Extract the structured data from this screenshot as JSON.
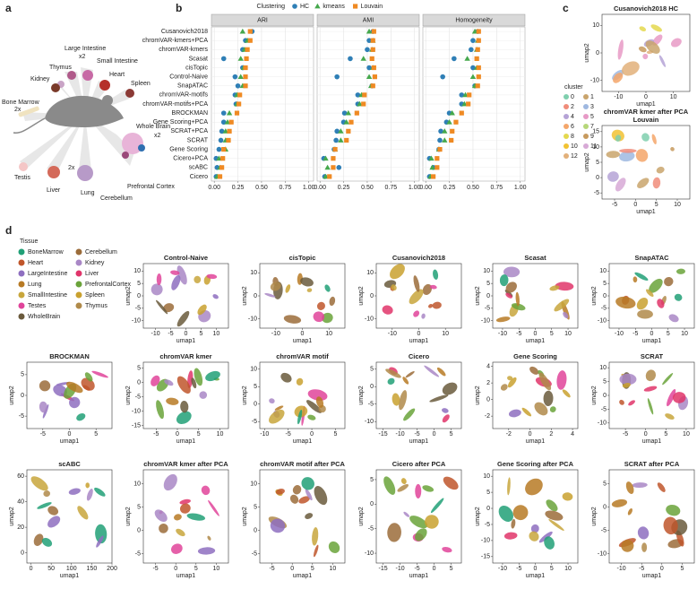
{
  "panel_labels": [
    "a",
    "b",
    "c",
    "d"
  ],
  "panel_a": {
    "labels": [
      "Large Intestine",
      "x2",
      "Small Intestine",
      "Thymus",
      "Kidney",
      "Heart",
      "Spleen",
      "Bone Marrow",
      "2x",
      "Whole Brain",
      "x2",
      "Prefrontal Cortex",
      "Cerebellum",
      "Lung",
      "2x",
      "Liver",
      "Testis"
    ]
  },
  "chart_data": {
    "type": "dot",
    "legend_title": "Clustering",
    "facets": [
      "ARI",
      "AMI",
      "Homogeneity"
    ],
    "categories": [
      "Cusanovich2018",
      "chromVAR-kmers+PCA",
      "chromVAR-kmers",
      "Scasat",
      "cisTopic",
      "Control-Naive",
      "SnapATAC",
      "chromVAR-motifs",
      "chromVAR-motifs+PCA",
      "BROCKMAN",
      "Gene Scoring+PCA",
      "SCRAT+PCA",
      "SCRAT",
      "Gene Scoring",
      "Cicero+PCA",
      "scABC",
      "Cicero"
    ],
    "xlim": [
      -0.03,
      1.05
    ],
    "xticks": [
      {
        "value": 0,
        "label": "0.00"
      },
      {
        "value": 0.25,
        "label": "0.25"
      },
      {
        "value": 0.5,
        "label": "0.50"
      },
      {
        "value": 0.75,
        "label": "0.75"
      },
      {
        "value": 1,
        "label": "1.00"
      }
    ],
    "series": [
      {
        "name": "HC",
        "color": "#2f7fb6",
        "marker": "circle",
        "values": [
          [
            0.4,
            0.33,
            0.3,
            0.1,
            0.3,
            0.22,
            0.25,
            0.22,
            0.23,
            0.1,
            0.1,
            0.08,
            0.07,
            0.05,
            0.02,
            0.03,
            0.02
          ],
          [
            0.56,
            0.52,
            0.5,
            0.32,
            0.52,
            0.18,
            0.55,
            0.4,
            0.4,
            0.26,
            0.25,
            0.18,
            0.17,
            0.15,
            0.04,
            0.2,
            0.05
          ],
          [
            0.55,
            0.5,
            0.48,
            0.3,
            0.5,
            0.18,
            0.52,
            0.38,
            0.38,
            0.25,
            0.22,
            0.16,
            0.15,
            0.14,
            0.04,
            0.08,
            0.04
          ]
        ]
      },
      {
        "name": "kmeans",
        "color": "#45a84c",
        "marker": "triangle",
        "values": [
          [
            0.3,
            0.35,
            0.32,
            0.28,
            0.31,
            0.28,
            0.3,
            0.24,
            0.24,
            0.16,
            0.14,
            0.12,
            0.12,
            0.12,
            0.05,
            0.06,
            0.03
          ],
          [
            0.52,
            0.56,
            0.55,
            0.46,
            0.56,
            0.52,
            0.54,
            0.44,
            0.42,
            0.3,
            0.28,
            0.22,
            0.22,
            0.16,
            0.06,
            0.08,
            0.06
          ],
          [
            0.52,
            0.55,
            0.54,
            0.44,
            0.54,
            0.5,
            0.52,
            0.42,
            0.41,
            0.28,
            0.25,
            0.2,
            0.2,
            0.14,
            0.06,
            0.07,
            0.05
          ]
        ]
      },
      {
        "name": "Louvain",
        "color": "#ef8a23",
        "marker": "square",
        "values": [
          [
            0.38,
            0.38,
            0.35,
            0.34,
            0.33,
            0.33,
            0.33,
            0.27,
            0.26,
            0.24,
            0.18,
            0.16,
            0.15,
            0.1,
            0.09,
            0.08,
            0.06
          ],
          [
            0.57,
            0.56,
            0.56,
            0.55,
            0.57,
            0.58,
            0.56,
            0.47,
            0.46,
            0.39,
            0.33,
            0.3,
            0.28,
            0.16,
            0.14,
            0.14,
            0.1
          ],
          [
            0.56,
            0.56,
            0.55,
            0.54,
            0.56,
            0.56,
            0.55,
            0.46,
            0.45,
            0.38,
            0.32,
            0.28,
            0.27,
            0.15,
            0.12,
            0.12,
            0.08
          ]
        ]
      }
    ]
  },
  "panel_c": {
    "legend_title": "cluster",
    "clusters": [
      "0",
      "1",
      "2",
      "3",
      "4",
      "5",
      "6",
      "7",
      "8",
      "9",
      "10",
      "11",
      "12"
    ],
    "cluster_colors": [
      "#7fcfae",
      "#c9a46c",
      "#f08c7a",
      "#9fb8e0",
      "#b5a3d6",
      "#e79ac6",
      "#f4a66a",
      "#b6d77a",
      "#e4d84e",
      "#c79a5e",
      "#f1c232",
      "#d7a9d6",
      "#e2b07a"
    ],
    "plots": [
      {
        "title": [
          "Cusanovich2018 HC"
        ],
        "xlabel": "umap1",
        "ylabel": "umap2",
        "xlim": [
          -16,
          16
        ],
        "ylim": [
          -14,
          14
        ],
        "xticks": [
          -10,
          0,
          10
        ],
        "yticks": [
          -10,
          0,
          10
        ]
      },
      {
        "title": [
          "chromVAR kmer after PCA",
          "Louvain"
        ],
        "xlabel": "umap1",
        "ylabel": "umap2",
        "xlim": [
          -8,
          13
        ],
        "ylim": [
          -7,
          17
        ],
        "xticks": [
          -5,
          0,
          5,
          10
        ],
        "yticks": [
          -5,
          0,
          5,
          10,
          15
        ]
      }
    ]
  },
  "panel_d": {
    "legend_title": "Tissue",
    "tissues": [
      "BoneMarrow",
      "Heart",
      "LargeIntestine",
      "Lung",
      "SmallIntestine",
      "Testes",
      "WholeBrain",
      "Cerebellum",
      "Kidney",
      "Liver",
      "PrefrontalCortex",
      "Spleen",
      "Thymus"
    ],
    "tissue_colors": [
      "#21a077",
      "#c0562b",
      "#8e6fc0",
      "#b77a25",
      "#c8a63c",
      "#e0449a",
      "#6a5a3c",
      "#9b6c3a",
      "#a987c6",
      "#e0356a",
      "#6aa33a",
      "#c9a12f",
      "#b08a4a"
    ],
    "plots": [
      {
        "title": [
          "Control-Naive"
        ],
        "xlabel": "umap1",
        "ylabel": "umap2",
        "xlim": [
          -14,
          14
        ],
        "ylim": [
          -13,
          13
        ],
        "xticks": [
          -10,
          -5,
          0,
          5,
          10
        ],
        "yticks": [
          -10,
          -5,
          0,
          5,
          10
        ]
      },
      {
        "title": [
          "cisTopic"
        ],
        "xlabel": "umap1",
        "ylabel": "umap2",
        "xlim": [
          -16,
          16
        ],
        "ylim": [
          -14,
          14
        ],
        "xticks": [
          -10,
          0,
          10
        ],
        "yticks": [
          -10,
          0,
          10
        ]
      },
      {
        "title": [
          "Cusanovich2018"
        ],
        "xlabel": "umap1",
        "ylabel": "umap2",
        "xlim": [
          -16,
          16
        ],
        "ylim": [
          -14,
          14
        ],
        "xticks": [
          -10,
          0,
          10
        ],
        "yticks": [
          -10,
          0,
          10
        ]
      },
      {
        "title": [
          "Scasat"
        ],
        "xlabel": "umap1",
        "ylabel": "umap2",
        "xlim": [
          -13,
          13
        ],
        "ylim": [
          -13,
          13
        ],
        "xticks": [
          -10,
          -5,
          0,
          5,
          10
        ],
        "yticks": [
          -10,
          -5,
          0,
          5,
          10
        ]
      },
      {
        "title": [
          "SnapATAC"
        ],
        "xlabel": "umap1",
        "ylabel": "umap2",
        "xlim": [
          -13,
          13
        ],
        "ylim": [
          -13,
          13
        ],
        "xticks": [
          -10,
          -5,
          0,
          5,
          10
        ],
        "yticks": [
          -10,
          -5,
          0,
          5,
          10
        ]
      },
      {
        "title": [
          "BROCKMAN"
        ],
        "xlabel": "umap1",
        "ylabel": "umap2",
        "xlim": [
          -8,
          8
        ],
        "ylim": [
          -8,
          8
        ],
        "xticks": [
          -5,
          0,
          5
        ],
        "yticks": [
          -5,
          0,
          5
        ]
      },
      {
        "title": [
          "chromVAR kmer"
        ],
        "xlabel": "umap1",
        "ylabel": "umap2",
        "xlim": [
          -8,
          12
        ],
        "ylim": [
          -16,
          7
        ],
        "xticks": [
          -5,
          0,
          5,
          10
        ],
        "yticks": [
          -15,
          -10,
          -5,
          0,
          5
        ]
      },
      {
        "title": [
          "chromVAR motif"
        ],
        "xlabel": "umap1",
        "ylabel": "umap2",
        "xlim": [
          -11,
          7
        ],
        "ylim": [
          -7,
          12
        ],
        "xticks": [
          -10,
          -5,
          0,
          5
        ],
        "yticks": [
          -5,
          0,
          5,
          10
        ]
      },
      {
        "title": [
          "Cicero"
        ],
        "xlabel": "umap1",
        "ylabel": "umap2",
        "xlim": [
          -17,
          8
        ],
        "ylim": [
          -12,
          7
        ],
        "xticks": [
          -15,
          -10,
          -5,
          0,
          5
        ],
        "yticks": [
          -10,
          -5,
          0,
          5
        ]
      },
      {
        "title": [
          "Gene Scoring"
        ],
        "xlabel": "umap1",
        "ylabel": "umap2",
        "xlim": [
          -3.5,
          4.5
        ],
        "ylim": [
          -3.5,
          4.5
        ],
        "xticks": [
          -2,
          0,
          2,
          4
        ],
        "yticks": [
          -2,
          0,
          2,
          4
        ]
      },
      {
        "title": [
          "SCRAT"
        ],
        "xlabel": "umap1",
        "ylabel": "umap2",
        "xlim": [
          -9,
          12
        ],
        "ylim": [
          -12,
          12
        ],
        "xticks": [
          -5,
          0,
          5,
          10
        ],
        "yticks": [
          -10,
          -5,
          0,
          5,
          10
        ]
      },
      {
        "title": [
          "scABC"
        ],
        "xlabel": "umap1",
        "ylabel": "umap2",
        "xlim": [
          -10,
          200
        ],
        "ylim": [
          -8,
          65
        ],
        "xticks": [
          0,
          50,
          100,
          150,
          200
        ],
        "yticks": [
          0,
          20,
          40,
          60
        ]
      },
      {
        "title": [
          "chromVAR kmer after PCA"
        ],
        "xlabel": "umap1",
        "ylabel": "umap2",
        "xlim": [
          -8,
          13
        ],
        "ylim": [
          -7,
          13
        ],
        "xticks": [
          -5,
          0,
          5,
          10
        ],
        "yticks": [
          -5,
          0,
          5,
          10
        ]
      },
      {
        "title": [
          "chromVAR motif after PCA"
        ],
        "xlabel": "umap1",
        "ylabel": "umap2",
        "xlim": [
          -8,
          13
        ],
        "ylim": [
          -7,
          13
        ],
        "xticks": [
          -5,
          0,
          5,
          10
        ],
        "yticks": [
          -5,
          0,
          5,
          10
        ]
      },
      {
        "title": [
          "Cicero after PCA"
        ],
        "xlabel": "umap1",
        "ylabel": "umap2",
        "xlim": [
          -17,
          8
        ],
        "ylim": [
          -12,
          7
        ],
        "xticks": [
          -15,
          -10,
          -5,
          0,
          5
        ],
        "yticks": [
          -10,
          -5,
          0,
          5
        ]
      },
      {
        "title": [
          "Gene Scoring after PCA"
        ],
        "xlabel": "umap1",
        "ylabel": "umap2",
        "xlim": [
          -13,
          13
        ],
        "ylim": [
          -17,
          12
        ],
        "xticks": [
          -10,
          -5,
          0,
          5,
          10
        ],
        "yticks": [
          -15,
          -10,
          -5,
          0,
          5,
          10
        ]
      },
      {
        "title": [
          "SCRAT after PCA"
        ],
        "xlabel": "umap1",
        "ylabel": "umap2",
        "xlim": [
          -13,
          8
        ],
        "ylim": [
          -12,
          8
        ],
        "xticks": [
          -10,
          -5,
          0,
          5
        ],
        "yticks": [
          -10,
          -5,
          0,
          5
        ]
      }
    ]
  }
}
